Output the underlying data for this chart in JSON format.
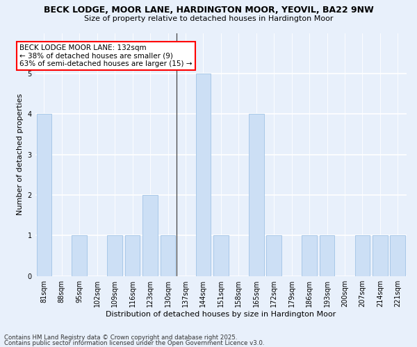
{
  "title1": "BECK LODGE, MOOR LANE, HARDINGTON MOOR, YEOVIL, BA22 9NW",
  "title2": "Size of property relative to detached houses in Hardington Moor",
  "xlabel": "Distribution of detached houses by size in Hardington Moor",
  "ylabel": "Number of detached properties",
  "categories": [
    "81sqm",
    "88sqm",
    "95sqm",
    "102sqm",
    "109sqm",
    "116sqm",
    "123sqm",
    "130sqm",
    "137sqm",
    "144sqm",
    "151sqm",
    "158sqm",
    "165sqm",
    "172sqm",
    "179sqm",
    "186sqm",
    "193sqm",
    "200sqm",
    "207sqm",
    "214sqm",
    "221sqm"
  ],
  "values": [
    4,
    0,
    1,
    0,
    1,
    1,
    2,
    1,
    0,
    5,
    1,
    0,
    4,
    1,
    0,
    1,
    1,
    0,
    1,
    1,
    1
  ],
  "bar_color": "#ccdff5",
  "bar_edge_color": "#a8c8e8",
  "annotation_line": "BECK LODGE MOOR LANE: 132sqm",
  "annotation_line2": "← 38% of detached houses are smaller (9)",
  "annotation_line3": "63% of semi-detached houses are larger (15) →",
  "footer1": "Contains HM Land Registry data © Crown copyright and database right 2025.",
  "footer2": "Contains public sector information licensed under the Open Government Licence v3.0.",
  "bg_color": "#e8f0fb",
  "plot_bg_color": "#e8f0fb",
  "ylim": [
    0,
    6
  ],
  "yticks": [
    0,
    1,
    2,
    3,
    4,
    5,
    6
  ],
  "subject_idx": 7.5
}
